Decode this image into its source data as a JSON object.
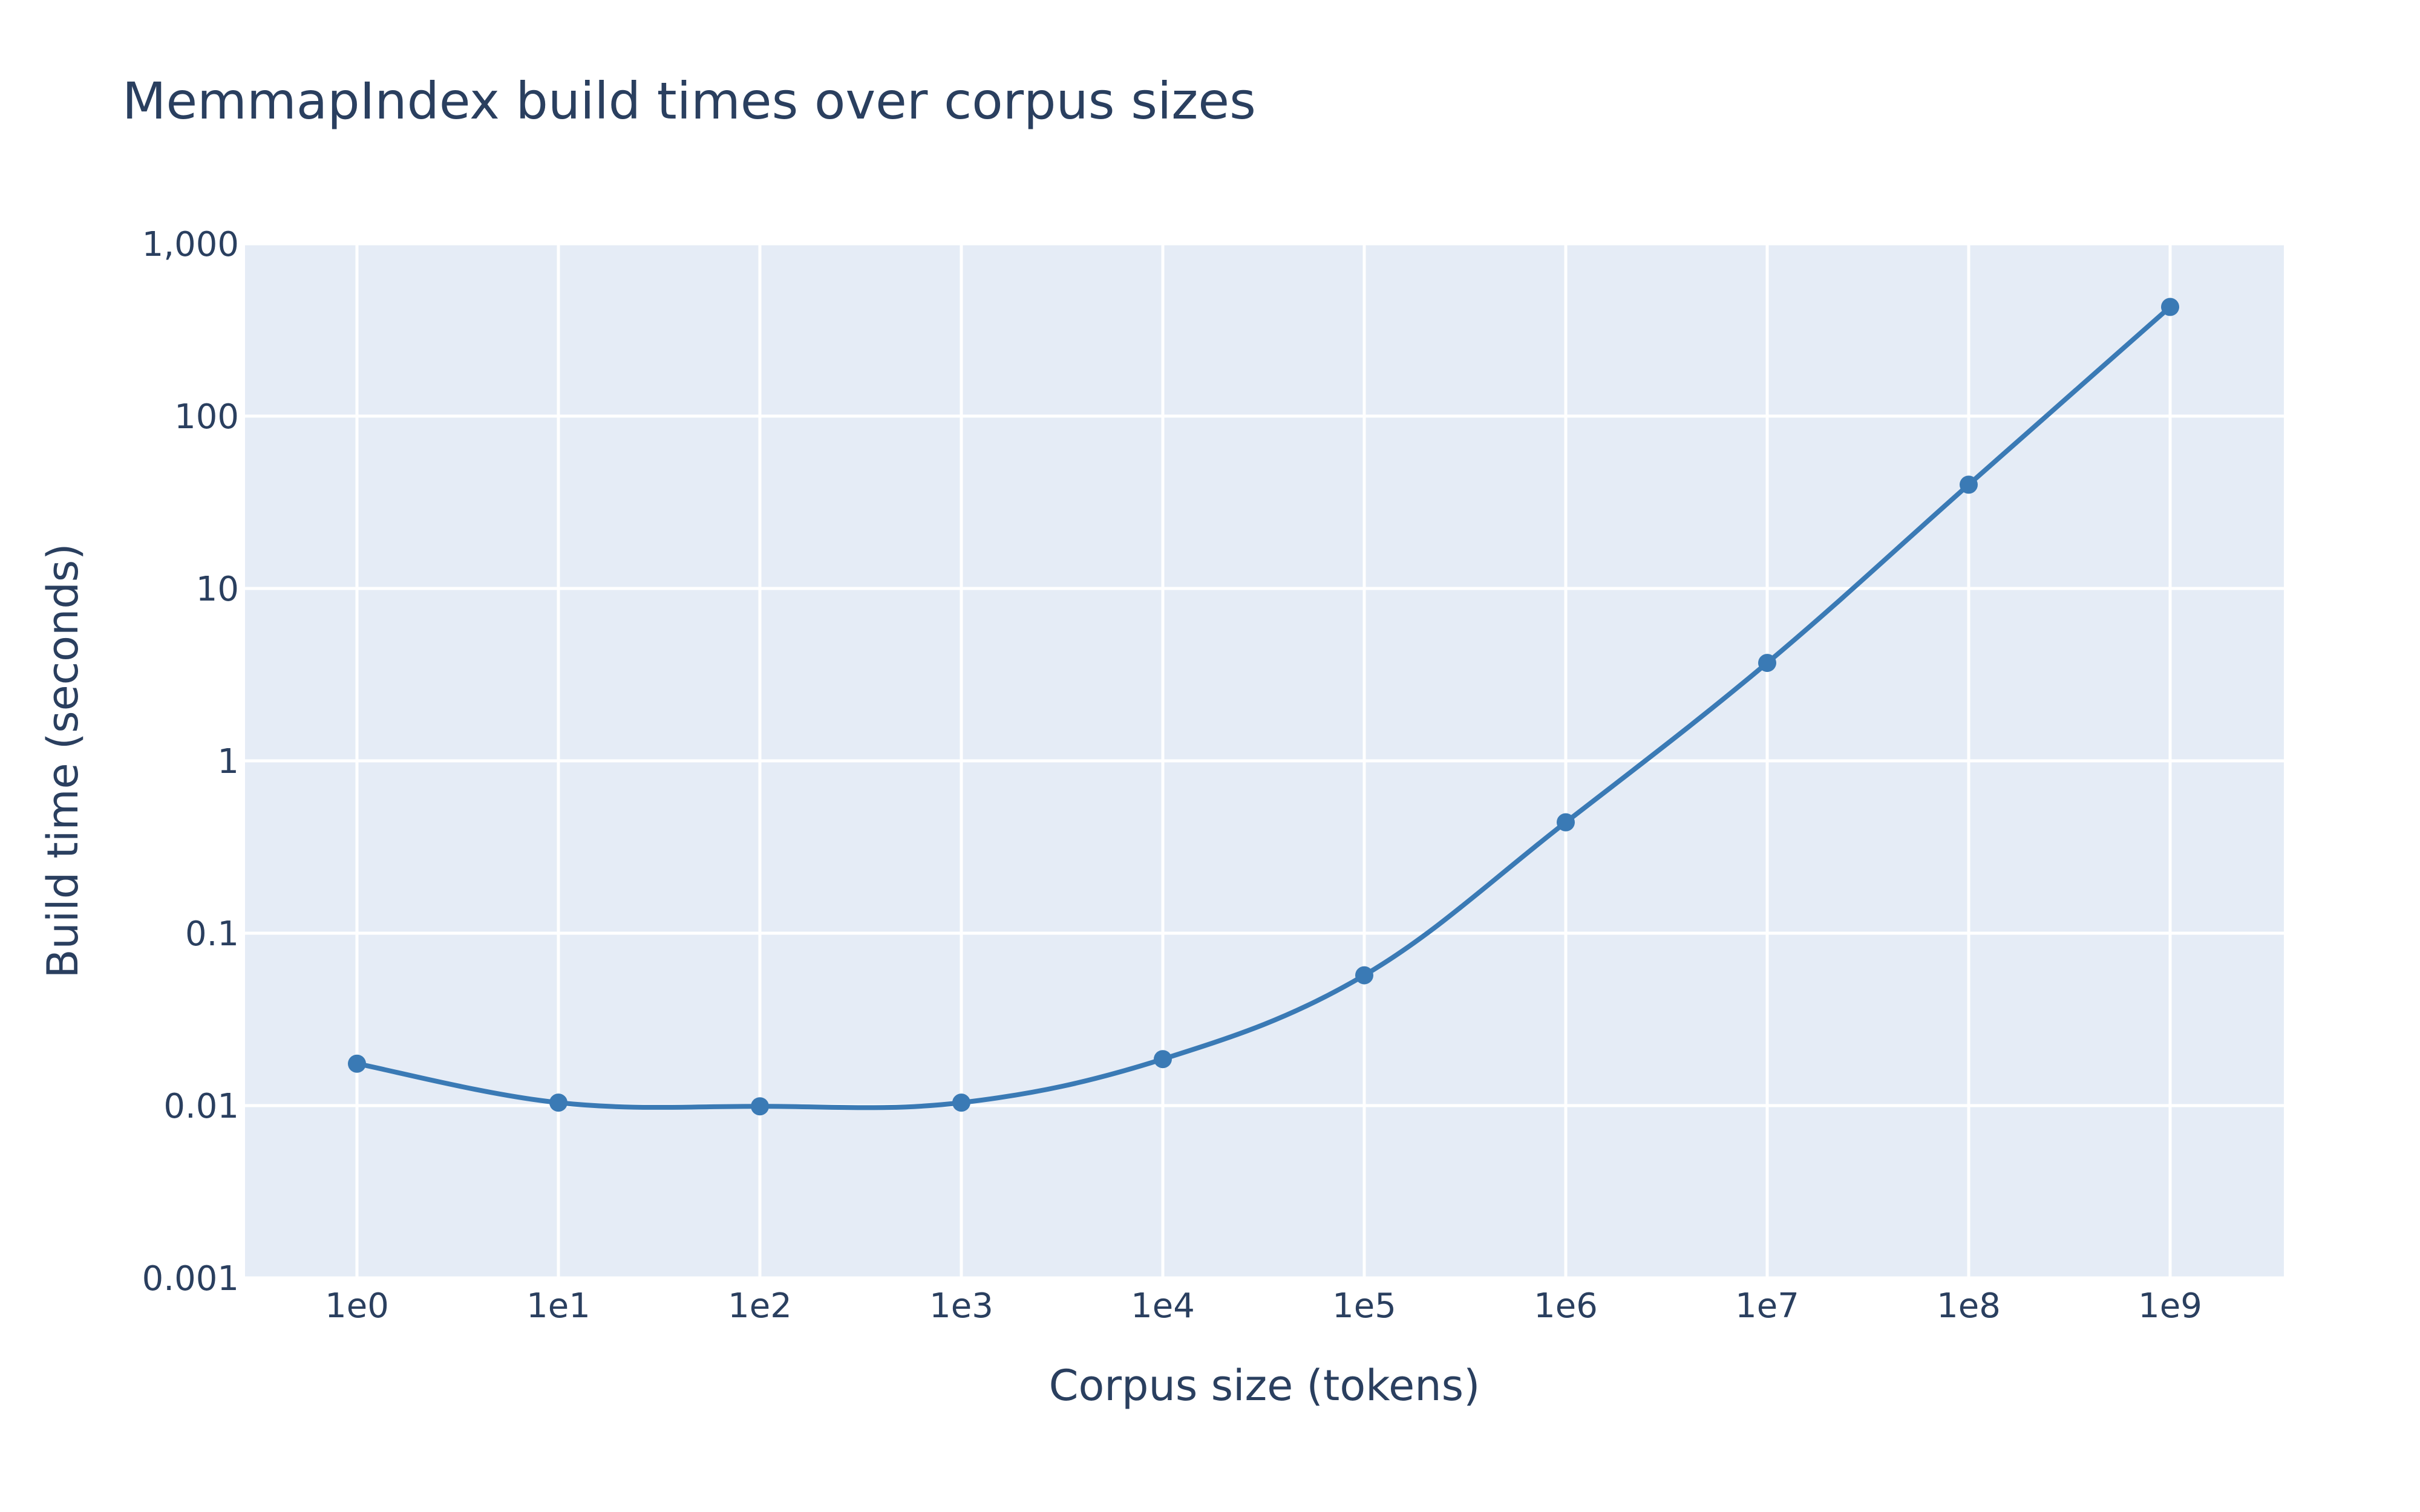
{
  "chart_data": {
    "type": "line",
    "title": "MemmapIndex build times over corpus sizes",
    "xlabel": "Corpus size (tokens)",
    "ylabel": "Build time (seconds)",
    "x_scale": "log",
    "y_scale": "log",
    "x": [
      1,
      10,
      100,
      1000,
      10000,
      100000,
      1000000,
      10000000,
      100000000,
      1000000000
    ],
    "x_tick_labels": [
      "1e0",
      "1e1",
      "1e2",
      "1e3",
      "1e4",
      "1e5",
      "1e6",
      "1e7",
      "1e8",
      "1e9"
    ],
    "y_ticks": [
      0.001,
      0.01,
      0.1,
      1,
      10,
      100,
      1000
    ],
    "y_tick_labels": [
      "0.001",
      "0.01",
      "0.1",
      "1",
      "10",
      "100",
      "1,000"
    ],
    "ylim": [
      0.001,
      1000
    ],
    "grid": true,
    "legend": "none",
    "series": [
      {
        "values": [
          0.0175,
          0.0104,
          0.0099,
          0.0104,
          0.0186,
          0.057,
          0.44,
          3.7,
          40,
          430
        ],
        "color": "#3a7ab5"
      }
    ],
    "plot_background": "#e5ecf6"
  }
}
